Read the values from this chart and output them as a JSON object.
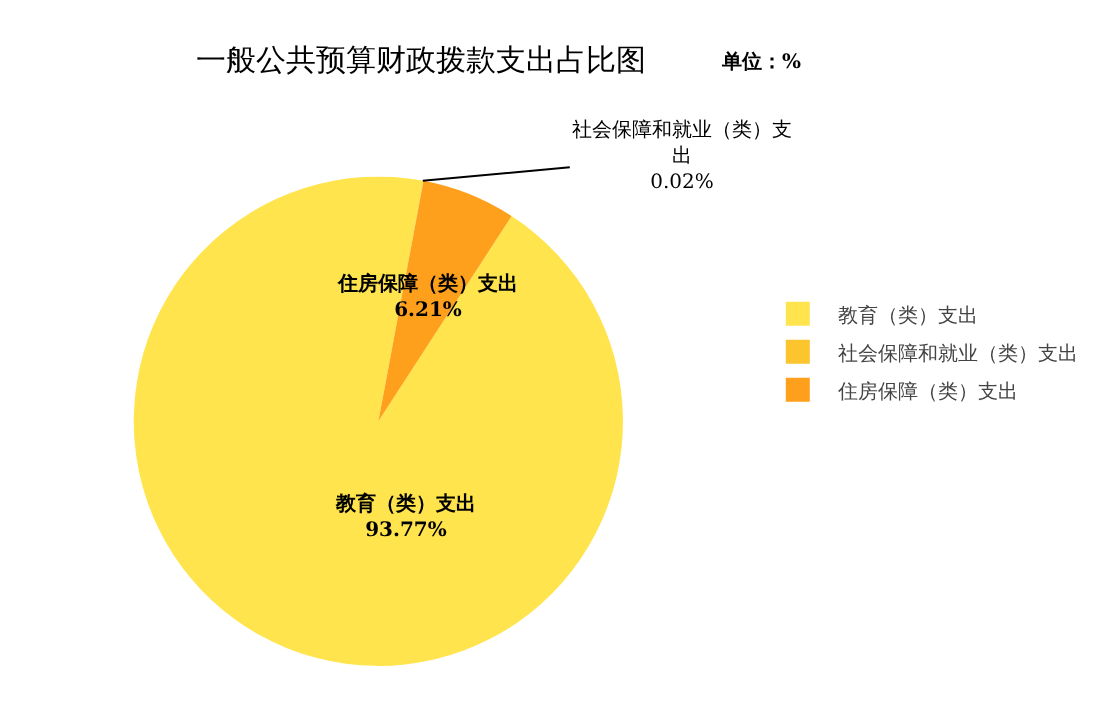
{
  "chart_data": {
    "type": "pie",
    "title": "一般公共预算财政拨款支出占比图",
    "annotations": [
      "单位：%"
    ],
    "categories": [
      "教育（类）支出",
      "社会保障和就业（类）支出",
      "住房保障（类）支出"
    ],
    "values": [
      93.77,
      0.02,
      6.21
    ],
    "value_labels": [
      "93.77%",
      "0.02%",
      "6.21%"
    ],
    "colors": [
      "#ffe44d",
      "#fcc42d",
      "#ffa01c"
    ],
    "legend": "right"
  }
}
